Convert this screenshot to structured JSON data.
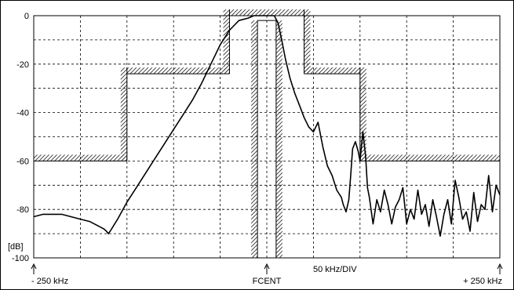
{
  "chart_data": {
    "type": "line",
    "ylabel": "[dB]",
    "y_ticks": [
      "0",
      "-20",
      "-40",
      "-60",
      "-80",
      "-100"
    ],
    "ylim": [
      -100,
      0
    ],
    "xlim": [
      -250,
      250
    ],
    "x_unit": "kHz",
    "grid": true,
    "grid_x_step": 50,
    "grid_y_step": 10,
    "x_labels": {
      "left": "- 250 kHz",
      "center": "FCENT",
      "div": "50 kHz/DIV",
      "right": "+ 250 kHz"
    },
    "mask": {
      "upper": [
        {
          "x_from": -250,
          "x_to": -150,
          "y": -60
        },
        {
          "x_from": -150,
          "x_to": -40,
          "y": -24
        },
        {
          "x_from": -40,
          "x_to": -10,
          "y": 0
        },
        {
          "x_from": -10,
          "x_to": 10,
          "y": 0
        },
        {
          "x_from": 10,
          "x_to": 40,
          "y": 0
        },
        {
          "x_from": 40,
          "x_to": 100,
          "y": -24
        },
        {
          "x_from": 100,
          "x_to": 250,
          "y": -60
        }
      ],
      "lower": [
        {
          "x_from": -10,
          "x_to": 10,
          "y": -2
        }
      ]
    },
    "series": [
      {
        "line_color": "#000000",
        "x": [
          -250,
          -240,
          -230,
          -220,
          -210,
          -200,
          -190,
          -180,
          -175,
          -172,
          -170,
          -168,
          -160,
          -150,
          -140,
          -130,
          -120,
          -110,
          -100,
          -90,
          -80,
          -70,
          -60,
          -50,
          -40,
          -30,
          -20,
          -14,
          -8,
          -4,
          0,
          4,
          8,
          12,
          16,
          20,
          25,
          30,
          35,
          40,
          45,
          50,
          55,
          60,
          65,
          70,
          75,
          80,
          82,
          85,
          88,
          90,
          92,
          95,
          98,
          100,
          103,
          106,
          108,
          110,
          114,
          118,
          122,
          126,
          130,
          134,
          138,
          142,
          146,
          150,
          154,
          158,
          162,
          166,
          170,
          174,
          178,
          182,
          186,
          190,
          194,
          198,
          202,
          206,
          210,
          214,
          218,
          222,
          226,
          230,
          234,
          238,
          242,
          246,
          250
        ],
        "y": [
          -83,
          -82,
          -82,
          -82,
          -83,
          -84,
          -85,
          -87,
          -88,
          -89,
          -90,
          -89,
          -84,
          -77,
          -71,
          -65,
          -59,
          -53,
          -47,
          -41,
          -35,
          -28,
          -20,
          -12,
          -6,
          -2,
          -1,
          0,
          0,
          0,
          0,
          0,
          0,
          -3,
          -10,
          -18,
          -26,
          -32,
          -37,
          -42,
          -46,
          -48,
          -44,
          -54,
          -62,
          -66,
          -72,
          -75,
          -78,
          -81,
          -76,
          -66,
          -55,
          -52,
          -56,
          -60,
          -48,
          -58,
          -71,
          -75,
          -86,
          -76,
          -81,
          -72,
          -78,
          -86,
          -79,
          -76,
          -71,
          -86,
          -80,
          -84,
          -72,
          -82,
          -78,
          -87,
          -76,
          -83,
          -91,
          -82,
          -76,
          -86,
          -68,
          -75,
          -84,
          -81,
          -89,
          -73,
          -85,
          -78,
          -80,
          -66,
          -81,
          -70,
          -74
        ]
      }
    ]
  }
}
